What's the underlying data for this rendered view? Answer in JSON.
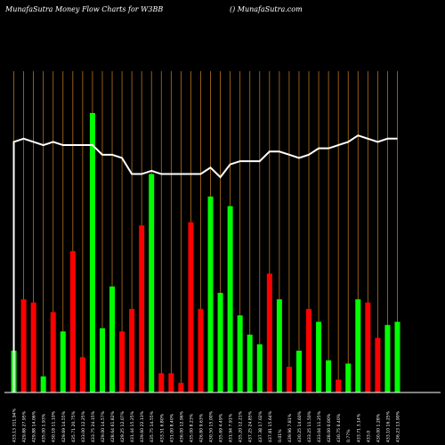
{
  "header": {
    "title_left": "MunafaSutra  Money Flow  Charts for W3BB",
    "title_right": "() MunafaSutra.com"
  },
  "colors": {
    "background": "#000000",
    "grid": "#b8741a",
    "up": "#00ff00",
    "down": "#ff0000",
    "line": "#ffffff",
    "label": "#ffffff"
  },
  "chart_data": {
    "type": "bar",
    "grid": true,
    "values": [
      13,
      29,
      28,
      5,
      25,
      19,
      44,
      11,
      87,
      20,
      33,
      19,
      26,
      52,
      68,
      6,
      6,
      3,
      53,
      26,
      61,
      31,
      58,
      24,
      18,
      15,
      37,
      29,
      8,
      13,
      26,
      22,
      10,
      4,
      9,
      29,
      28,
      17,
      21,
      22
    ],
    "direction": [
      "up",
      "down",
      "down",
      "up",
      "down",
      "up",
      "down",
      "down",
      "up",
      "up",
      "up",
      "down",
      "down",
      "down",
      "up",
      "down",
      "down",
      "down",
      "down",
      "down",
      "up",
      "up",
      "up",
      "up",
      "up",
      "up",
      "down",
      "up",
      "down",
      "up",
      "down",
      "up",
      "up",
      "down",
      "up",
      "up",
      "down",
      "down",
      "up",
      "up"
    ],
    "line": [
      78,
      79,
      78,
      77,
      78,
      77,
      77,
      77,
      77,
      74,
      74,
      73,
      68,
      68,
      69,
      68,
      68,
      68,
      68,
      68,
      70,
      67,
      71,
      72,
      72,
      72,
      75,
      75,
      74,
      73,
      74,
      76,
      76,
      77,
      78,
      80,
      79,
      78,
      79,
      79
    ],
    "line_start": 0,
    "ylim": [
      0,
      100
    ],
    "x_labels": [
      "433.13 311.94%",
      "429.88 27.95%",
      "429.88 14.06%",
      "435.00 1.93%",
      "430.18 11.10%",
      "429.69 14.55%",
      "435.71 20.75%",
      "433.00 12.25%",
      "433.75 24.15%",
      "429.00 14.57%",
      "428.64 61.82%",
      "429.25 12.07%",
      "431.44 15.25%",
      "439.60 22.13%",
      "435.75 14.55%",
      "433.51 6.80%",
      "431.00 8.40%",
      "436.00 12.96%",
      "435.00 8.23%",
      "426.80 9.63%",
      "430.50 15.00%",
      "435.69 4.49%",
      "431.94 7.91%",
      "435.20 12.21%",
      "437.25 24.85%",
      "437.38 17.02%",
      "437.81 15.64%",
      "0.01%",
      "439.96 7.81%",
      "430.25 14.60%",
      "433.25 11.50%",
      "433.04 11.25%",
      "428.00 0.00%",
      "430.75 6.40%",
      "0.77%",
      "433.71 3.14%",
      "433.0",
      "430.00 1.28%",
      "433.10 16.25%",
      "436.23 13.90%"
    ]
  }
}
